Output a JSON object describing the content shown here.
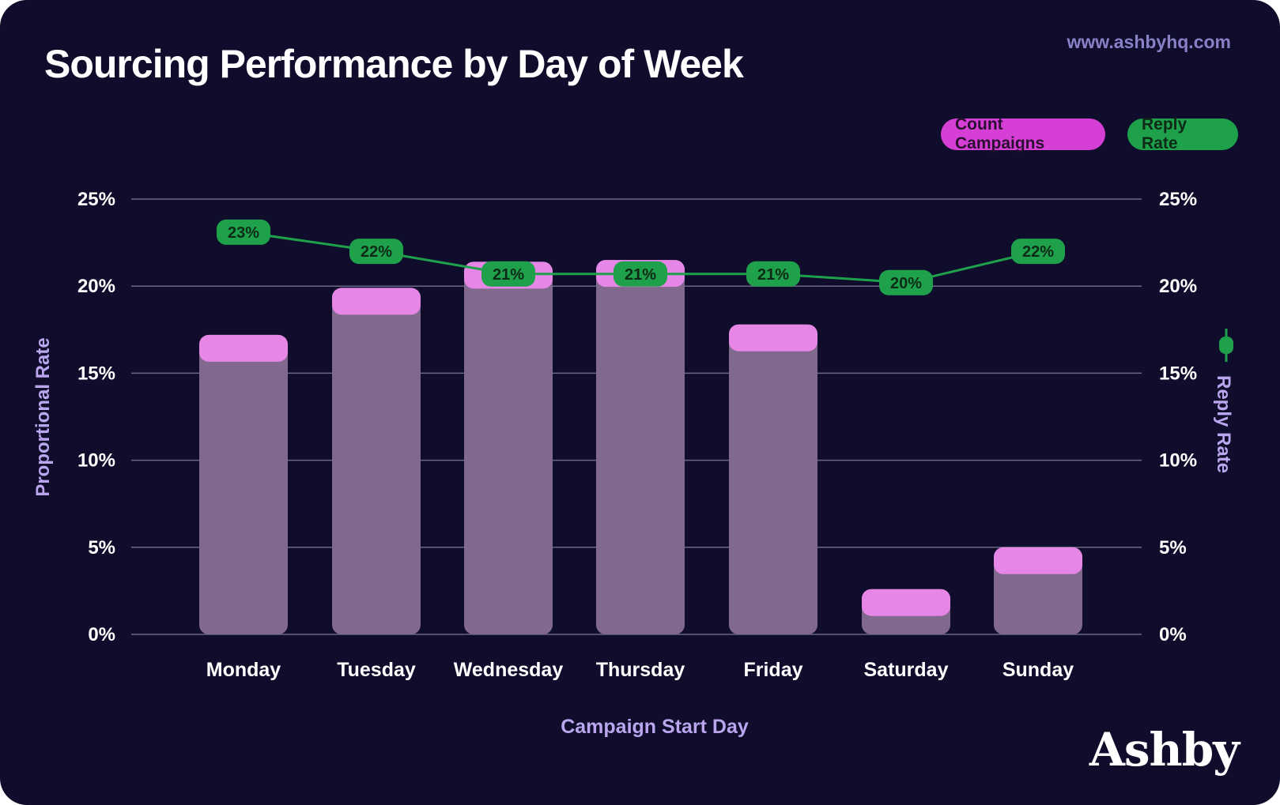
{
  "title": "Sourcing Performance by Day of Week",
  "url": "www.ashbyhq.com",
  "logo": "Ashby",
  "legend": {
    "count_label": "Count Campaigns",
    "reply_label": "Reply Rate"
  },
  "colors": {
    "background": "#0f0d2b",
    "bar_body": "#81698e",
    "bar_cap": "#e686e6",
    "line": "#1fa14c",
    "count_legend": "#d63fd6",
    "axis_label": "#b9a6ee",
    "grid": "#6a6683"
  },
  "chart_data": {
    "type": "bar",
    "title": "Sourcing Performance by Day of Week",
    "xlabel": "Campaign Start Day",
    "ylabel": "Proportional Rate",
    "y2label": "Reply Rate",
    "ylim": [
      0,
      25
    ],
    "y2lim": [
      0,
      25
    ],
    "yticks": [
      "0%",
      "5%",
      "10%",
      "15%",
      "20%",
      "25%"
    ],
    "grid": true,
    "legend_position": "top-right",
    "categories": [
      "Monday",
      "Tuesday",
      "Wednesday",
      "Thursday",
      "Friday",
      "Saturday",
      "Sunday"
    ],
    "series": [
      {
        "name": "Count Campaigns",
        "type": "bar",
        "axis": "left",
        "values": [
          17.2,
          19.9,
          21.4,
          21.5,
          17.8,
          2.6,
          5.0
        ]
      },
      {
        "name": "Reply Rate",
        "type": "line",
        "axis": "right",
        "values": [
          23.1,
          22.0,
          20.7,
          20.7,
          20.7,
          20.2,
          22.0
        ],
        "labels": [
          "23%",
          "22%",
          "21%",
          "21%",
          "21%",
          "20%",
          "22%"
        ]
      }
    ]
  }
}
